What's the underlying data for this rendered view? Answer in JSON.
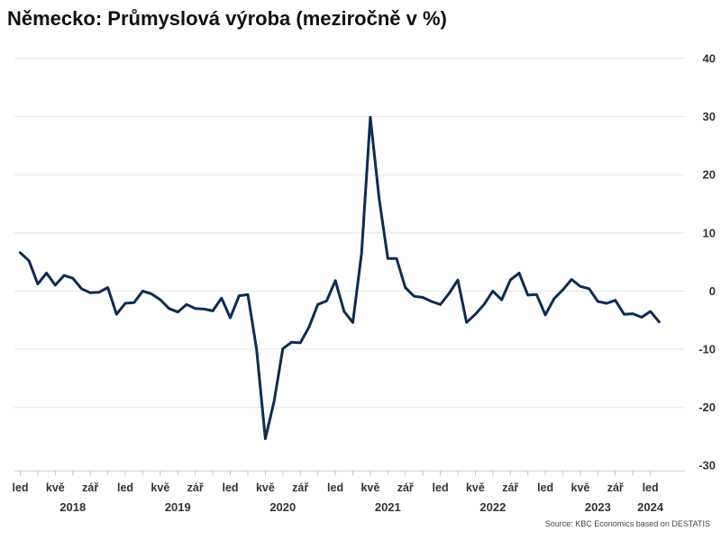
{
  "title": "Německo: Průmyslová výroba (meziročně v %)",
  "source": "Source: KBC Economics based on DESTATIS",
  "colors": {
    "line": "#0d2b54",
    "grid": "#e6e6e6"
  },
  "chart_data": {
    "type": "line",
    "title": "Německo: Průmyslová výroba (meziročně v %)",
    "ylim": [
      -30,
      40
    ],
    "yticks": [
      -30,
      -20,
      -10,
      0,
      10,
      20,
      30,
      40
    ],
    "y_axis_position": "right",
    "grid": true,
    "legend": "none",
    "x_start": "2018-01",
    "x_ticks": [
      {
        "label": "led",
        "date": "2018-01"
      },
      {
        "label": "kvě",
        "date": "2018-05"
      },
      {
        "label": "zář",
        "date": "2018-09"
      },
      {
        "label": "led",
        "date": "2019-01"
      },
      {
        "label": "kvě",
        "date": "2019-05"
      },
      {
        "label": "zář",
        "date": "2019-09"
      },
      {
        "label": "led",
        "date": "2020-01"
      },
      {
        "label": "kvě",
        "date": "2020-05"
      },
      {
        "label": "zář",
        "date": "2020-09"
      },
      {
        "label": "led",
        "date": "2021-01"
      },
      {
        "label": "kvě",
        "date": "2021-05"
      },
      {
        "label": "zář",
        "date": "2021-09"
      },
      {
        "label": "led",
        "date": "2022-01"
      },
      {
        "label": "kvě",
        "date": "2022-05"
      },
      {
        "label": "zář",
        "date": "2022-09"
      },
      {
        "label": "led",
        "date": "2023-01"
      },
      {
        "label": "kvě",
        "date": "2023-05"
      },
      {
        "label": "zář",
        "date": "2023-09"
      },
      {
        "label": "led",
        "date": "2024-01"
      }
    ],
    "years": [
      {
        "label": "2018",
        "date": "2018-07"
      },
      {
        "label": "2019",
        "date": "2019-07"
      },
      {
        "label": "2020",
        "date": "2020-07"
      },
      {
        "label": "2021",
        "date": "2021-07"
      },
      {
        "label": "2022",
        "date": "2022-07"
      },
      {
        "label": "2023",
        "date": "2023-07"
      },
      {
        "label": "2024",
        "date": "2024-01"
      }
    ],
    "series": [
      {
        "values": [
          6.6,
          5.2,
          1.2,
          3.1,
          1.0,
          2.7,
          2.2,
          0.4,
          -0.3,
          -0.2,
          0.6,
          -4.0,
          -2.1,
          -2.0,
          0.0,
          -0.5,
          -1.5,
          -3.0,
          -3.6,
          -2.3,
          -3.0,
          -3.1,
          -3.4,
          -1.2,
          -4.6,
          -0.8,
          -0.6,
          -10.0,
          -25.4,
          -19.0,
          -9.9,
          -8.8,
          -8.9,
          -6.2,
          -2.3,
          -1.7,
          1.8,
          -3.5,
          -5.4,
          6.5,
          29.9,
          16.0,
          5.6,
          5.6,
          0.6,
          -0.9,
          -1.1,
          -1.8,
          -2.3,
          -0.4,
          1.9,
          -5.4,
          -4.0,
          -2.3,
          0.0,
          -1.5,
          1.9,
          3.1,
          -0.7,
          -0.6,
          -4.1,
          -1.3,
          0.2,
          2.0,
          0.8,
          0.4,
          -1.8,
          -2.1,
          -1.6,
          -4.0,
          -3.9,
          -4.5,
          -3.5,
          -5.3
        ]
      }
    ]
  }
}
